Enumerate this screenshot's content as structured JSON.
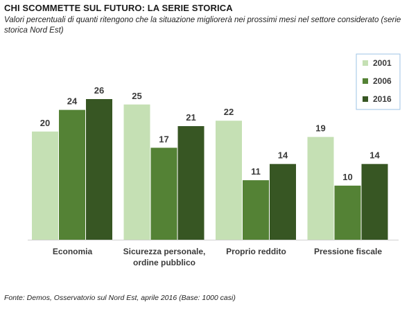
{
  "header": {
    "title": "CHI SCOMMETTE SUL FUTURO: LA SERIE STORICA",
    "subtitle": "Valori percentuali di quanti ritengono che la situazione migliorerà nei prossimi mesi nel settore considerato (serie storica Nord Est)"
  },
  "footer": {
    "source": "Fonte: Demos, Osservatorio sul Nord Est, aprile 2016 (Base: 1000 casi)"
  },
  "chart_data": {
    "type": "bar",
    "title": "CHI SCOMMETTE SUL FUTURO: LA SERIE STORICA",
    "categories": [
      [
        "Economia"
      ],
      [
        "Sicurezza personale,",
        "ordine pubblico"
      ],
      [
        "Proprio reddito"
      ],
      [
        "Pressione fiscale"
      ]
    ],
    "series": [
      {
        "name": "2001",
        "color": "#c5e0b4",
        "values": [
          20,
          25,
          22,
          19
        ]
      },
      {
        "name": "2006",
        "color": "#548235",
        "values": [
          24,
          17,
          11,
          10
        ]
      },
      {
        "name": "2016",
        "color": "#375623",
        "values": [
          26,
          21,
          14,
          14
        ]
      }
    ],
    "ylim": [
      0,
      26
    ],
    "grid": false,
    "legend": "top-right"
  }
}
